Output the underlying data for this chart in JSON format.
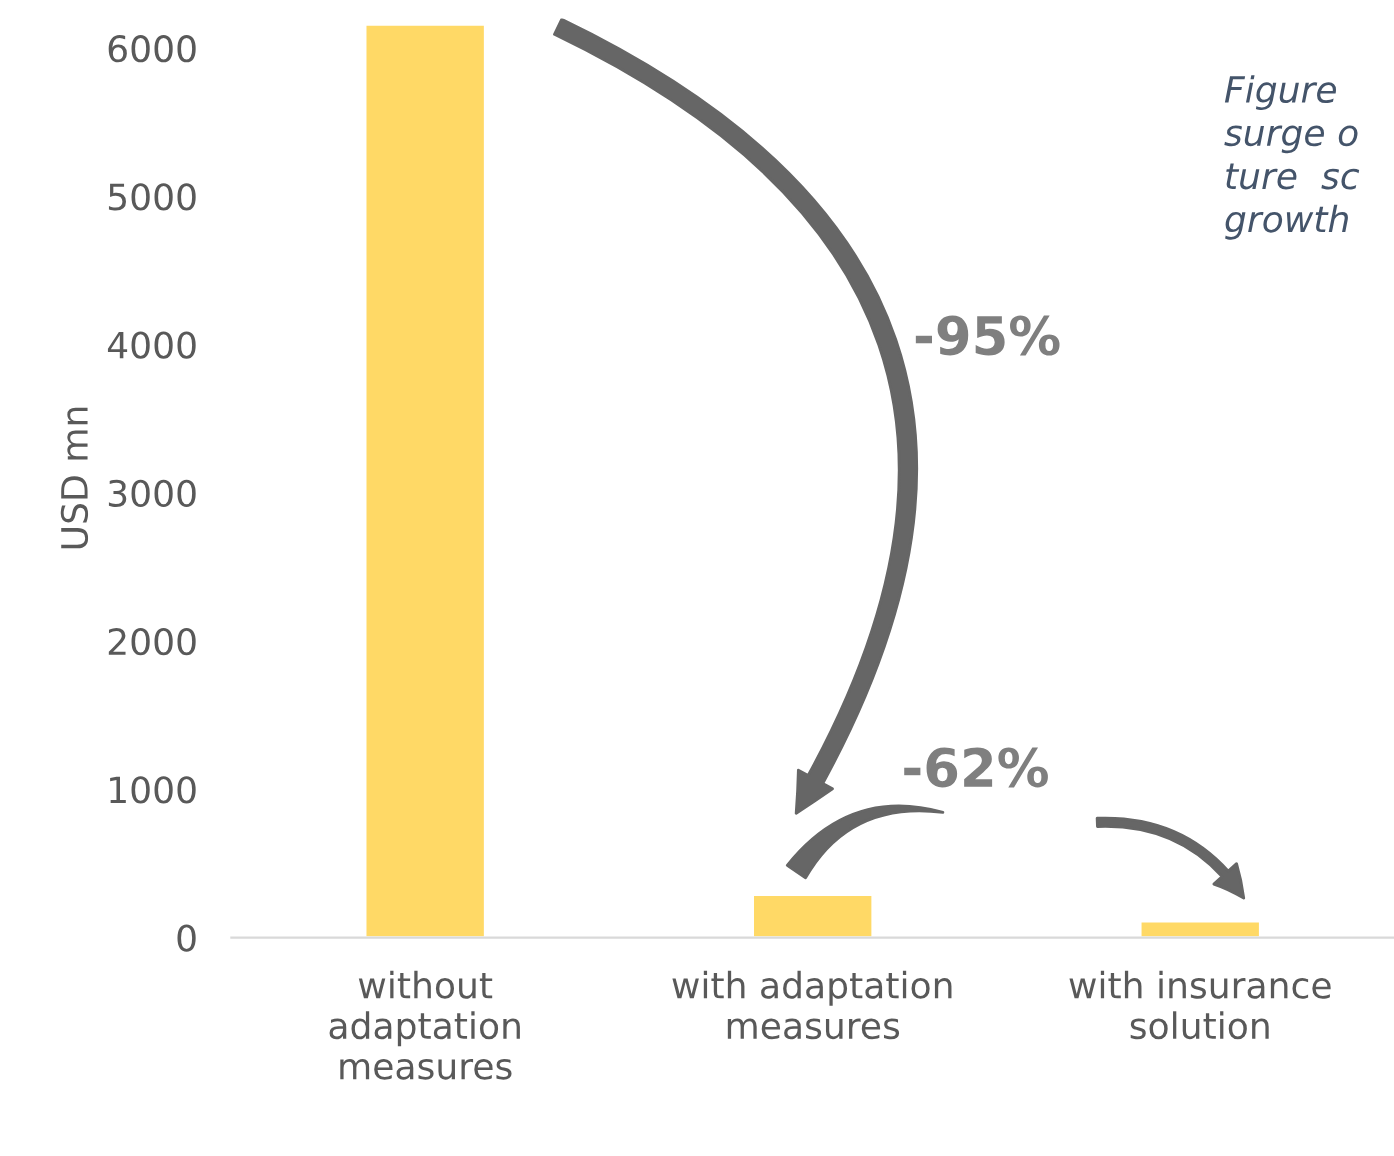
{
  "chart_data": {
    "type": "bar",
    "categories": [
      "without\nadaptation\nmeasures",
      "with adaptation\nmeasures",
      "with insurance\nsolution"
    ],
    "values": [
      6160,
      290,
      110
    ],
    "color": "#ffd966",
    "ylabel": "USD mn",
    "ylim": [
      0,
      6200
    ],
    "yticks": [
      0,
      1000,
      2000,
      3000,
      4000,
      5000,
      6000
    ],
    "grid": false,
    "annotations": [
      "-95%",
      "-62%",
      "Figure\nsurge o\nture  sc\ngrowth"
    ]
  }
}
